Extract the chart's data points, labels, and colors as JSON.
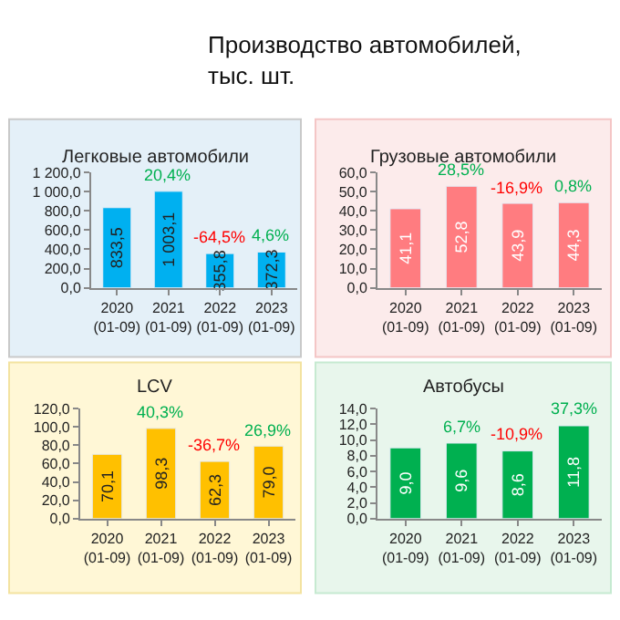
{
  "chart_data": [
    {
      "type": "bar",
      "title": "Легковые автомобили",
      "categories": [
        "2020 (01-09)",
        "2021 (01-09)",
        "2022 (01-09)",
        "2023 (01-09)"
      ],
      "series": [
        {
          "color": "#00b0f0",
          "values": [
            833.5,
            1003.1,
            355.8,
            372.3
          ],
          "value_labels": [
            "833,5",
            "1 003,1",
            "355,8",
            "372,3"
          ]
        }
      ],
      "ylim": [
        0,
        1200
      ],
      "yticks": [
        {
          "value": 0,
          "label": "0,0"
        },
        {
          "value": 200,
          "label": "200,0"
        },
        {
          "value": 400,
          "label": "400,0"
        },
        {
          "value": 600,
          "label": "600,0"
        },
        {
          "value": 800,
          "label": "800,0"
        },
        {
          "value": 1000,
          "label": "1 000,0"
        },
        {
          "value": 1200,
          "label": "1 200,0"
        }
      ],
      "annotations": [
        "Производство автомобилей, тыс. шт.",
        {
          "text": "20,4%",
          "x": "2021 (01-09)",
          "y": 1003.1
        },
        {
          "text": "-64,5%",
          "x": "2022 (01-09)",
          "y": 355.8
        },
        {
          "text": "4,6%",
          "x": "2023 (01-09)",
          "y": 372.3
        }
      ]
    },
    {
      "type": "bar",
      "title": "Грузовые автомобили",
      "categories": [
        "2020 (01-09)",
        "2021 (01-09)",
        "2022 (01-09)",
        "2023 (01-09)"
      ],
      "series": [
        {
          "color": "#ff7c80",
          "values": [
            41.1,
            52.8,
            43.9,
            44.3
          ],
          "value_labels": [
            "41,1",
            "52,8",
            "43,9",
            "44,3"
          ]
        }
      ],
      "ylim": [
        0,
        60
      ],
      "yticks": [
        {
          "value": 0,
          "label": "0,0"
        },
        {
          "value": 10,
          "label": "10,0"
        },
        {
          "value": 20,
          "label": "20,0"
        },
        {
          "value": 30,
          "label": "30,0"
        },
        {
          "value": 40,
          "label": "40,0"
        },
        {
          "value": 50,
          "label": "50,0"
        },
        {
          "value": 60,
          "label": "60,0"
        }
      ],
      "annotations": [
        {
          "text": "28,5%",
          "x": "2021 (01-09)",
          "y": 52.8
        },
        {
          "text": "-16,9%",
          "x": "2022 (01-09)",
          "y": 43.9
        },
        {
          "text": "0,8%",
          "x": "2023 (01-09)",
          "y": 44.3
        }
      ]
    },
    {
      "type": "bar",
      "title": "LCV",
      "categories": [
        "2020 (01-09)",
        "2021 (01-09)",
        "2022 (01-09)",
        "2023 (01-09)"
      ],
      "series": [
        {
          "color": "#ffc000",
          "values": [
            70.1,
            98.3,
            62.3,
            79.0
          ],
          "value_labels": [
            "70,1",
            "98,3",
            "62,3",
            "79,0"
          ]
        }
      ],
      "ylim": [
        0,
        120
      ],
      "yticks": [
        {
          "value": 0,
          "label": "0,0"
        },
        {
          "value": 20,
          "label": "20,0"
        },
        {
          "value": 40,
          "label": "40,0"
        },
        {
          "value": 60,
          "label": "60,0"
        },
        {
          "value": 80,
          "label": "80,0"
        },
        {
          "value": 100,
          "label": "100,0"
        },
        {
          "value": 120,
          "label": "120,0"
        }
      ],
      "annotations": [
        {
          "text": "40,3%",
          "x": "2021 (01-09)",
          "y": 98.3
        },
        {
          "text": "-36,7%",
          "x": "2022 (01-09)",
          "y": 62.3
        },
        {
          "text": "26,9%",
          "x": "2023 (01-09)",
          "y": 79.0
        }
      ]
    },
    {
      "type": "bar",
      "title": "Автобусы",
      "categories": [
        "2020 (01-09)",
        "2021 (01-09)",
        "2022 (01-09)",
        "2023 (01-09)"
      ],
      "series": [
        {
          "color": "#00b050",
          "values": [
            9.0,
            9.6,
            8.6,
            11.8
          ],
          "value_labels": [
            "9,0",
            "9,6",
            "8,6",
            "11,8"
          ]
        }
      ],
      "ylim": [
        0,
        14
      ],
      "yticks": [
        {
          "value": 0,
          "label": "0,0"
        },
        {
          "value": 2,
          "label": "2,0"
        },
        {
          "value": 4,
          "label": "4,0"
        },
        {
          "value": 6,
          "label": "6,0"
        },
        {
          "value": 8,
          "label": "8,0"
        },
        {
          "value": 10,
          "label": "10,0"
        },
        {
          "value": 12,
          "label": "12,0"
        },
        {
          "value": 14,
          "label": "14,0"
        }
      ],
      "annotations": [
        {
          "text": "6,7%",
          "x": "2021 (01-09)",
          "y": 9.6
        },
        {
          "text": "-10,9%",
          "x": "2022 (01-09)",
          "y": 8.6
        },
        {
          "text": "37,3%",
          "x": "2023 (01-09)",
          "y": 11.8
        }
      ]
    }
  ]
}
